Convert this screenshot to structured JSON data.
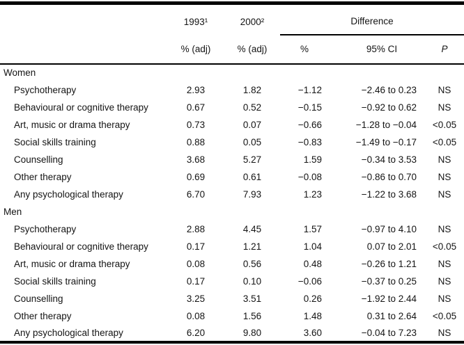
{
  "table": {
    "header": {
      "col_1993": "1993¹",
      "col_2000": "2000²",
      "adj_1993": "% (adj)",
      "adj_2000": "% (adj)",
      "difference_label": "Difference",
      "pct_label": "%",
      "ci_label": "95% CI",
      "p_label": "P"
    },
    "sections": [
      {
        "label": "Women",
        "rows": [
          {
            "label": "Psychotherapy",
            "y1993": "2.93",
            "y2000": "1.82",
            "diff": "−1.12",
            "ci": "−2.46 to 0.23",
            "p": "NS"
          },
          {
            "label": "Behavioural or cognitive therapy",
            "y1993": "0.67",
            "y2000": "0.52",
            "diff": "−0.15",
            "ci": "−0.92 to 0.62",
            "p": "NS"
          },
          {
            "label": "Art, music or drama therapy",
            "y1993": "0.73",
            "y2000": "0.07",
            "diff": "−0.66",
            "ci": "−1.28 to −0.04",
            "p": "<0.05"
          },
          {
            "label": "Social skills training",
            "y1993": "0.88",
            "y2000": "0.05",
            "diff": "−0.83",
            "ci": "−1.49 to −0.17",
            "p": "<0.05"
          },
          {
            "label": "Counselling",
            "y1993": "3.68",
            "y2000": "5.27",
            "diff": "1.59",
            "ci": "−0.34 to 3.53",
            "p": "NS"
          },
          {
            "label": "Other therapy",
            "y1993": "0.69",
            "y2000": "0.61",
            "diff": "−0.08",
            "ci": "−0.86 to 0.70",
            "p": "NS"
          },
          {
            "label": "Any psychological therapy",
            "y1993": "6.70",
            "y2000": "7.93",
            "diff": "1.23",
            "ci": "−1.22 to 3.68",
            "p": "NS"
          }
        ]
      },
      {
        "label": "Men",
        "rows": [
          {
            "label": "Psychotherapy",
            "y1993": "2.88",
            "y2000": "4.45",
            "diff": "1.57",
            "ci": "−0.97 to 4.10",
            "p": "NS"
          },
          {
            "label": "Behavioural or cognitive therapy",
            "y1993": "0.17",
            "y2000": "1.21",
            "diff": "1.04",
            "ci": "0.07 to 2.01",
            "p": "<0.05"
          },
          {
            "label": "Art, music or drama therapy",
            "y1993": "0.08",
            "y2000": "0.56",
            "diff": "0.48",
            "ci": "−0.26 to 1.21",
            "p": "NS"
          },
          {
            "label": "Social skills training",
            "y1993": "0.17",
            "y2000": "0.10",
            "diff": "−0.06",
            "ci": "−0.37 to 0.25",
            "p": "NS"
          },
          {
            "label": "Counselling",
            "y1993": "3.25",
            "y2000": "3.51",
            "diff": "0.26",
            "ci": "−1.92 to 2.44",
            "p": "NS"
          },
          {
            "label": "Other therapy",
            "y1993": "0.08",
            "y2000": "1.56",
            "diff": "1.48",
            "ci": "0.31 to 2.64",
            "p": "<0.05"
          },
          {
            "label": "Any psychological therapy",
            "y1993": "6.20",
            "y2000": "9.80",
            "diff": "3.60",
            "ci": "−0.04 to 7.23",
            "p": "NS"
          }
        ]
      }
    ]
  }
}
